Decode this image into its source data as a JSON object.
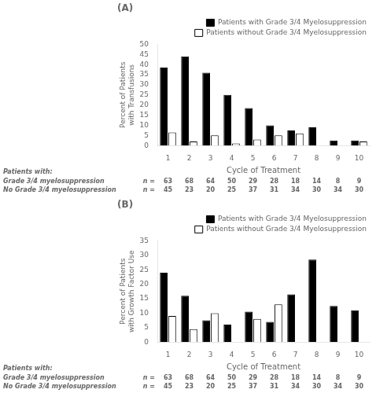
{
  "chart_data": [
    {
      "type": "bar",
      "title": "(A)",
      "xlabel": "Cycle of Treatment",
      "ylabel": "Percent of Patients with Transfusions",
      "categories": [
        "1",
        "2",
        "3",
        "4",
        "5",
        "6",
        "7",
        "8",
        "9",
        "10"
      ],
      "series": [
        {
          "name": "Patients with Grade 3/4 Myelosuppression",
          "color": "#000000",
          "values": [
            38.5,
            44.0,
            36.0,
            25.0,
            18.5,
            10.0,
            7.5,
            9.0,
            2.5,
            2.5
          ]
        },
        {
          "name": "Patients without Grade 3/4 Myelosuppression",
          "color": "#ffffff",
          "values": [
            6.5,
            2.0,
            5.0,
            1.0,
            3.0,
            5.0,
            6.0,
            0,
            0,
            2.0
          ]
        }
      ],
      "ylim": [
        0,
        50
      ],
      "yticks": [
        0,
        5,
        10,
        15,
        20,
        25,
        30,
        35,
        40,
        45,
        50
      ],
      "grid": false,
      "legend": "upper right",
      "table": {
        "header": "Patients with:",
        "n_label": "n =",
        "rows": [
          {
            "label": "Grade 3/4 myelosuppression",
            "values": [
              63,
              68,
              64,
              50,
              29,
              28,
              18,
              14,
              8,
              9
            ]
          },
          {
            "label": "No Grade 3/4 myelosuppression",
            "values": [
              45,
              23,
              20,
              25,
              37,
              31,
              34,
              30,
              34,
              30
            ]
          }
        ]
      }
    },
    {
      "type": "bar",
      "title": "(B)",
      "xlabel": "Cycle of Treatment",
      "ylabel": "Percent of Patients with Growth Factor Use",
      "categories": [
        "1",
        "2",
        "3",
        "4",
        "5",
        "6",
        "7",
        "8",
        "9",
        "10"
      ],
      "series": [
        {
          "name": "Patients with Grade 3/4 Myelosuppression",
          "color": "#000000",
          "values": [
            24.0,
            16.0,
            7.5,
            6.0,
            10.5,
            7.0,
            16.5,
            28.5,
            12.5,
            11.0
          ]
        },
        {
          "name": "Patients without Grade 3/4 Myelosuppression",
          "color": "#ffffff",
          "values": [
            9.0,
            4.5,
            10.0,
            0,
            8.0,
            13.0,
            0,
            0,
            0,
            0
          ]
        }
      ],
      "ylim": [
        0,
        35
      ],
      "yticks": [
        0,
        5,
        10,
        15,
        20,
        25,
        30,
        35
      ],
      "grid": false,
      "legend": "upper right",
      "table": {
        "header": "Patients with:",
        "n_label": "n =",
        "rows": [
          {
            "label": "Grade 3/4 myelosuppression",
            "values": [
              63,
              68,
              64,
              50,
              29,
              28,
              18,
              14,
              8,
              9
            ]
          },
          {
            "label": "No Grade 3/4 myelosuppression",
            "values": [
              45,
              23,
              20,
              25,
              37,
              31,
              34,
              30,
              34,
              30
            ]
          }
        ]
      }
    }
  ]
}
